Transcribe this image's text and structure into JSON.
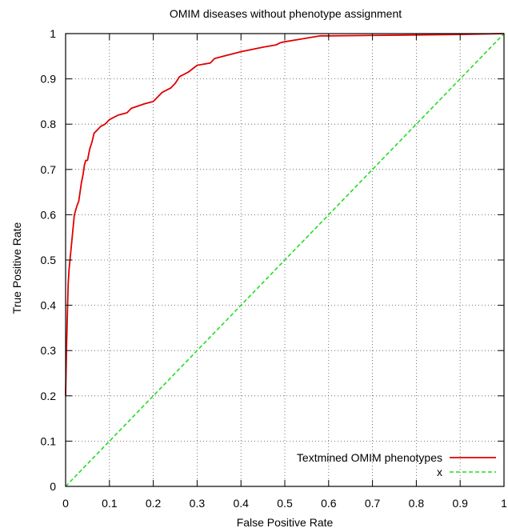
{
  "chart_data": {
    "type": "line",
    "title": "OMIM diseases without phenotype assignment",
    "xlabel": "False Positive Rate",
    "ylabel": "True Positive Rate",
    "xlim": [
      0,
      1
    ],
    "ylim": [
      0,
      1
    ],
    "xticks": [
      "0",
      "0.1",
      "0.2",
      "0.3",
      "0.4",
      "0.5",
      "0.6",
      "0.7",
      "0.8",
      "0.9",
      "1"
    ],
    "yticks": [
      "0",
      "0.1",
      "0.2",
      "0.3",
      "0.4",
      "0.5",
      "0.6",
      "0.7",
      "0.8",
      "0.9",
      "1"
    ],
    "grid": true,
    "legend_position": "bottom-right",
    "series": [
      {
        "name": "Textmined OMIM phenotypes",
        "color": "#e00000",
        "dash": "solid",
        "x": [
          0,
          0.002,
          0.004,
          0.006,
          0.008,
          0.01,
          0.012,
          0.015,
          0.018,
          0.02,
          0.023,
          0.026,
          0.03,
          0.033,
          0.036,
          0.04,
          0.043,
          0.046,
          0.05,
          0.055,
          0.06,
          0.065,
          0.07,
          0.075,
          0.08,
          0.09,
          0.1,
          0.11,
          0.12,
          0.14,
          0.15,
          0.18,
          0.2,
          0.21,
          0.22,
          0.24,
          0.25,
          0.26,
          0.28,
          0.3,
          0.33,
          0.34,
          0.36,
          0.4,
          0.45,
          0.48,
          0.49,
          0.5,
          0.55,
          0.58,
          0.6,
          0.7,
          0.8,
          0.9,
          1.0
        ],
        "y": [
          0.2,
          0.3,
          0.38,
          0.45,
          0.48,
          0.5,
          0.52,
          0.55,
          0.58,
          0.6,
          0.61,
          0.62,
          0.63,
          0.65,
          0.67,
          0.69,
          0.71,
          0.72,
          0.72,
          0.745,
          0.76,
          0.78,
          0.785,
          0.79,
          0.795,
          0.8,
          0.81,
          0.815,
          0.82,
          0.825,
          0.835,
          0.845,
          0.85,
          0.86,
          0.87,
          0.88,
          0.89,
          0.905,
          0.915,
          0.93,
          0.935,
          0.945,
          0.95,
          0.96,
          0.97,
          0.975,
          0.98,
          0.982,
          0.99,
          0.995,
          0.995,
          0.996,
          0.997,
          0.998,
          1.0
        ]
      },
      {
        "name": "x",
        "color": "#22dd22",
        "dash": "dashed",
        "x": [
          0,
          1
        ],
        "y": [
          0,
          1
        ]
      }
    ]
  }
}
